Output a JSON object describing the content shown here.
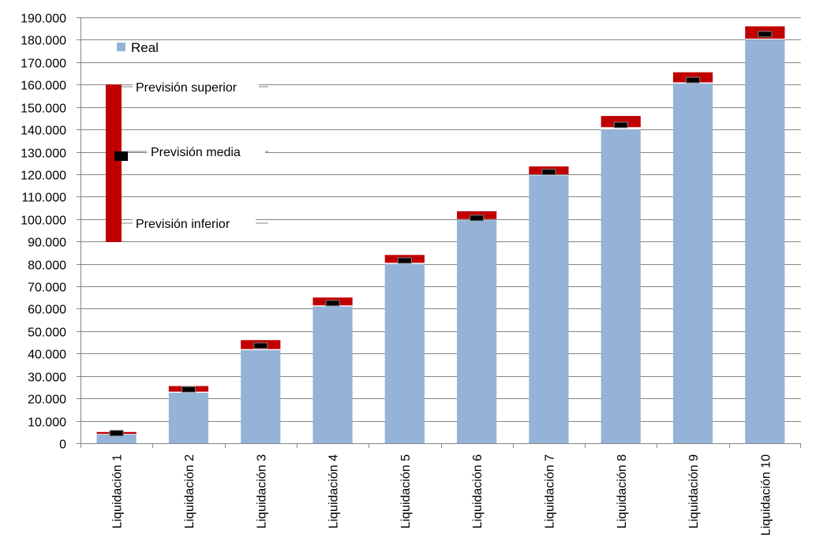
{
  "chart_data": {
    "type": "bar",
    "categories": [
      "Liquidación 1",
      "Liquidación 2",
      "Liquidación 3",
      "Liquidación 4",
      "Liquidación 5",
      "Liquidación 6",
      "Liquidación 7",
      "Liquidación 8",
      "Liquidación 9",
      "Liquidación 10"
    ],
    "series": [
      {
        "name": "Real",
        "type": "bar",
        "values": [
          4000,
          22500,
          41500,
          61000,
          80000,
          99500,
          119500,
          140000,
          160500,
          180000
        ]
      },
      {
        "name": "Previsión inferior",
        "type": "range-low",
        "values": [
          4200,
          23000,
          42000,
          61500,
          80500,
          100000,
          120000,
          141000,
          161000,
          180500
        ]
      },
      {
        "name": "Previsión superior",
        "type": "range-high",
        "values": [
          5000,
          25500,
          46000,
          65000,
          84000,
          103500,
          123500,
          146000,
          165500,
          186000
        ]
      },
      {
        "name": "Previsión media",
        "type": "marker",
        "values": [
          4500,
          24000,
          43500,
          62500,
          81500,
          100500,
          121000,
          142000,
          162000,
          182500
        ]
      }
    ],
    "y_ticks": [
      "0",
      "10.000",
      "20.000",
      "30.000",
      "40.000",
      "50.000",
      "60.000",
      "70.000",
      "80.000",
      "90.000",
      "100.000",
      "110.000",
      "120.000",
      "130.000",
      "140.000",
      "150.000",
      "160.000",
      "170.000",
      "180.000",
      "190.000"
    ],
    "ylim": [
      0,
      190000
    ],
    "grid": true,
    "legend": {
      "position": "top-left",
      "real_label": "Real",
      "superior_label": "Previsión superior",
      "media_label": "Previsión media",
      "inferior_label": "Previsión inferior"
    },
    "colors": {
      "real": "#95B3D7",
      "prevision": "#C00000",
      "media": "#000000",
      "grid": "#868686"
    }
  }
}
